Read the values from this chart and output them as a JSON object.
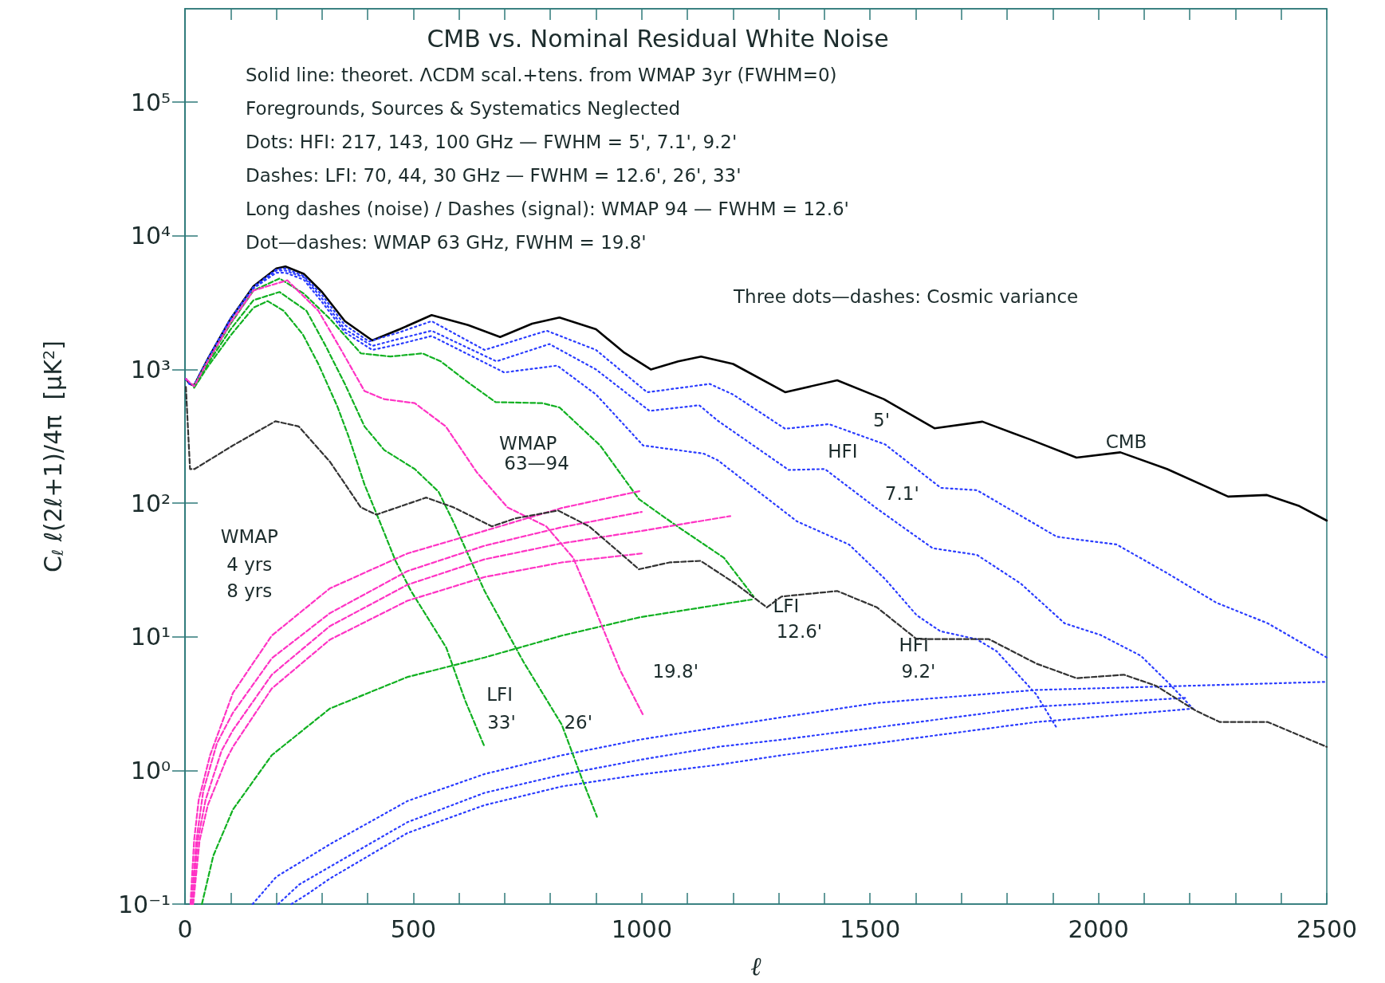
{
  "chart_data": {
    "type": "line",
    "title": "CMB vs. Nominal Residual White Noise",
    "xlabel": "ℓ",
    "ylabel": "C$_{ℓ}$ ℓ(2ℓ+1)/4π  [μK$^{2}$]",
    "xlim": [
      0,
      2500
    ],
    "xticks": [
      0,
      {
        "value": 100,
        "label": null
      },
      {
        "value": 200,
        "label": null
      },
      {
        "value": 300,
        "label": null
      },
      {
        "value": 400,
        "label": null
      },
      500,
      {
        "value": 600,
        "label": null
      },
      {
        "value": 700,
        "label": null
      },
      {
        "value": 800,
        "label": null
      },
      {
        "value": 900,
        "label": null
      },
      1000,
      {
        "value": 1100,
        "label": null
      },
      {
        "value": 1200,
        "label": null
      },
      {
        "value": 1300,
        "label": null
      },
      {
        "value": 1400,
        "label": null
      },
      1500,
      {
        "value": 1600,
        "label": null
      },
      {
        "value": 1700,
        "label": null
      },
      {
        "value": 1800,
        "label": null
      },
      {
        "value": 1900,
        "label": null
      },
      2000,
      {
        "value": 2100,
        "label": null
      },
      {
        "value": 2200,
        "label": null
      },
      {
        "value": 2300,
        "label": null
      },
      {
        "value": 2400,
        "label": null
      },
      2500
    ],
    "ylim": [
      0.1,
      500000
    ],
    "yticks": [
      {
        "value": 0.1,
        "label": "10⁻¹"
      },
      {
        "value": 1,
        "label": "10⁰"
      },
      {
        "value": 10,
        "label": "10¹"
      },
      {
        "value": 100,
        "label": "10²"
      },
      {
        "value": 1000,
        "label": "10³"
      },
      {
        "value": 10000,
        "label": "10⁴"
      },
      {
        "value": 100000,
        "label": "10⁵"
      }
    ],
    "log": "y",
    "grid": false,
    "marker": "none",
    "annotations": [
      "Solid line: theoret. ΛCDM scal.+tens. from WMAP 3yr (FWHM=0)",
      "Foregrounds, Sources & Systematics Neglected",
      "Dots: HFI: 217, 143, 100 GHz — FWHM = 5', 7.1', 9.2'",
      "Dashes: LFI: 70, 44, 30 GHz — FWHM = 12.6', 26', 33'",
      "Long dashes (noise) / Dashes (signal): WMAP 94 — FWHM = 12.6'",
      "Dot—dashes: WMAP 63 GHz, FWHM = 19.8'",
      "Three dots—dashes: Cosmic variance",
      "CMB",
      "5'",
      "HFI",
      "7.1'",
      "WMAP",
      "63—94",
      "WMAP",
      "4 yrs",
      "8 yrs",
      "LFI",
      "12.6'",
      "HFI",
      "9.2'",
      "19.8'",
      "LFI",
      "33'",
      "26'"
    ],
    "series": [
      {
        "color": "#000000",
        "line_style": "solid",
        "x": [
          2,
          10,
          20,
          50,
          100,
          150,
          200,
          220,
          260,
          300,
          350,
          410,
          470,
          540,
          620,
          690,
          760,
          820,
          900,
          960,
          1020,
          1080,
          1130,
          1200,
          1314,
          1428,
          1530,
          1641,
          1746,
          1850,
          1952,
          2048,
          2150,
          2284,
          2369,
          2440,
          2500
        ],
        "values": [
          850,
          780,
          760,
          1200,
          2400,
          4200,
          5700,
          5900,
          5200,
          3800,
          2300,
          1650,
          2000,
          2550,
          2150,
          1750,
          2200,
          2450,
          2000,
          1350,
          1000,
          1150,
          1250,
          1100,
          676,
          830,
          600,
          363,
          407,
          300,
          219,
          240,
          180,
          112,
          115,
          95,
          74
        ]
      },
      {
        "color": "#2a3cff",
        "line_style": "dotted",
        "x": [
          2,
          10,
          20,
          50,
          100,
          150,
          200,
          220,
          260,
          300,
          350,
          403,
          470,
          540,
          656,
          792,
          900,
          1012,
          1149,
          1200,
          1314,
          1410,
          1533,
          1655,
          1734,
          1909,
          2040,
          2150,
          2258,
          2371,
          2500
        ],
        "values": [
          850,
          780,
          760,
          1200,
          2400,
          4150,
          5600,
          5700,
          5000,
          3600,
          2150,
          1620,
          1900,
          2300,
          1400,
          1950,
          1400,
          675,
          780,
          650,
          360,
          390,
          275,
          130,
          125,
          56,
          49,
          30,
          18,
          12.6,
          7
        ]
      },
      {
        "color": "#2a3cff",
        "line_style": "dotted",
        "x": [
          2,
          10,
          20,
          50,
          100,
          150,
          200,
          220,
          260,
          300,
          350,
          410,
          470,
          540,
          682,
          798,
          900,
          1017,
          1126,
          1166,
          1322,
          1401,
          1515,
          1637,
          1734,
          1830,
          1926,
          2005,
          2093,
          2154,
          2207
        ],
        "values": [
          850,
          780,
          760,
          1200,
          2400,
          4100,
          5500,
          5500,
          4900,
          3400,
          2000,
          1500,
          1700,
          1950,
          1150,
          1550,
          1000,
          490,
          540,
          415,
          177,
          180,
          91,
          46,
          41,
          25,
          12.6,
          10.3,
          7.2,
          4.5,
          2.9
        ]
      },
      {
        "color": "#2a3cff",
        "line_style": "dotted",
        "x": [
          2,
          10,
          20,
          50,
          100,
          150,
          200,
          220,
          260,
          300,
          350,
          410,
          470,
          540,
          699,
          815,
          900,
          1003,
          1135,
          1166,
          1340,
          1454,
          1533,
          1602,
          1654,
          1733,
          1777,
          1864,
          1908
        ],
        "values": [
          850,
          780,
          760,
          1200,
          2400,
          4050,
          5300,
          5300,
          4700,
          3200,
          1900,
          1400,
          1550,
          1780,
          950,
          1070,
          650,
          270,
          235,
          210,
          73,
          49,
          27,
          14.5,
          11,
          9.6,
          7.8,
          3.7,
          2.1
        ]
      },
      {
        "color": "#2a3cff",
        "line_style": "dotted",
        "x": [
          148,
          200,
          317,
          487,
          656,
          826,
          996,
          1166,
          1307,
          1515,
          1864,
          2200,
          2500
        ],
        "values": [
          0.1,
          0.16,
          0.28,
          0.59,
          0.94,
          1.3,
          1.7,
          2.1,
          2.5,
          3.2,
          4,
          4.3,
          4.6
        ]
      },
      {
        "color": "#2a3cff",
        "line_style": "dotted",
        "x": [
          204,
          250,
          317,
          487,
          656,
          826,
          996,
          1166,
          1307,
          1515,
          1864,
          2196
        ],
        "values": [
          0.1,
          0.14,
          0.19,
          0.41,
          0.68,
          0.93,
          1.2,
          1.5,
          1.7,
          2.1,
          3,
          3.5
        ]
      },
      {
        "color": "#2a3cff",
        "line_style": "dotted",
        "x": [
          233,
          270,
          317,
          487,
          656,
          826,
          996,
          1166,
          1307,
          1515,
          1864,
          2207
        ],
        "values": [
          0.1,
          0.12,
          0.155,
          0.34,
          0.55,
          0.76,
          0.93,
          1.1,
          1.3,
          1.6,
          2.3,
          2.9
        ]
      },
      {
        "color": "#10b020",
        "line_style": "dashed",
        "x": [
          20,
          50,
          100,
          150,
          207,
          260,
          317,
          385,
          450,
          520,
          560,
          620,
          680,
          782,
          820,
          909,
          994,
          1078,
          1180,
          1245
        ],
        "values": [
          750,
          1150,
          2200,
          3900,
          4800,
          3700,
          2400,
          1320,
          1250,
          1320,
          1150,
          800,
          570,
          560,
          520,
          270,
          107,
          67,
          39,
          20
        ]
      },
      {
        "color": "#10b020",
        "line_style": "dashed",
        "x": [
          20,
          50,
          100,
          150,
          207,
          266,
          308,
          350,
          393,
          436,
          503,
          555,
          588,
          656,
          741,
          825,
          869,
          902
        ],
        "values": [
          740,
          1100,
          2000,
          3300,
          3800,
          2750,
          1500,
          780,
          375,
          250,
          180,
          122,
          72,
          22,
          6.5,
          2.2,
          0.87,
          0.45
        ]
      },
      {
        "color": "#10b020",
        "line_style": "dashed",
        "x": [
          20,
          50,
          100,
          150,
          181,
          216,
          258,
          292,
          334,
          359,
          393,
          427,
          461,
          495,
          572,
          614,
          656
        ],
        "values": [
          730,
          1050,
          1800,
          2900,
          3250,
          2750,
          1830,
          1100,
          525,
          310,
          138,
          72,
          37,
          22,
          8.3,
          3.3,
          1.5
        ]
      },
      {
        "color": "#10b020",
        "line_style": "dashed",
        "x": [
          37,
          62,
          105,
          190,
          317,
          487,
          656,
          825,
          996,
          1241
        ],
        "values": [
          0.1,
          0.23,
          0.51,
          1.3,
          2.9,
          5,
          7,
          10.2,
          14,
          19
        ]
      },
      {
        "color": "#ff33c4",
        "line_style": "dashed",
        "x": [
          2,
          20,
          50,
          100,
          150,
          224,
          292,
          342,
          393,
          436,
          503,
          571,
          639,
          706,
          791,
          850,
          892,
          911,
          953,
          1003
        ],
        "values": [
          850,
          750,
          1150,
          2250,
          3900,
          4650,
          2750,
          1400,
          690,
          600,
          560,
          375,
          170,
          93,
          67,
          39,
          18,
          12.5,
          5.6,
          2.6
        ]
      },
      {
        "color": "#ff33c4",
        "line_style": "dashed",
        "x": [
          12,
          20,
          30,
          55,
          105,
          190,
          317,
          487,
          656,
          825,
          1000
        ],
        "values": [
          0.1,
          0.3,
          0.6,
          1.3,
          3.8,
          10.2,
          23,
          42,
          62,
          92,
          124
        ]
      },
      {
        "color": "#ff33c4",
        "line_style": "dashed",
        "x": [
          14,
          25,
          40,
          70,
          105,
          190,
          317,
          487,
          656,
          825,
          1000
        ],
        "values": [
          0.1,
          0.3,
          0.7,
          1.6,
          2.7,
          6.9,
          15,
          31,
          48,
          66,
          86
        ]
      },
      {
        "color": "#ff33c4",
        "line_style": "dashed",
        "x": [
          16,
          28,
          45,
          80,
          105,
          190,
          317,
          487,
          656,
          825,
          1000,
          1194
        ],
        "values": [
          0.1,
          0.3,
          0.6,
          1.4,
          2,
          5.2,
          12,
          24.5,
          38,
          50,
          62,
          80
        ]
      },
      {
        "color": "#ff33c4",
        "line_style": "dashed",
        "x": [
          18,
          32,
          50,
          90,
          105,
          190,
          317,
          487,
          656,
          825,
          1000
        ],
        "values": [
          0.1,
          0.3,
          0.55,
          1.2,
          1.5,
          4.1,
          9.5,
          18.6,
          28,
          36,
          42
        ]
      },
      {
        "color": "#333333",
        "line_style": "dashed",
        "x": [
          2,
          11,
          21,
          105,
          198,
          249,
          317,
          385,
          419,
          528,
          588,
          672,
          724,
          817,
          885,
          994,
          1061,
          1129,
          1205,
          1274,
          1306,
          1428,
          1515,
          1602,
          1760,
          1864,
          1952,
          2056,
          2126,
          2213,
          2266,
          2371,
          2500
        ],
        "values": [
          740,
          180,
          180,
          270,
          410,
          375,
          205,
          93,
          82,
          110,
          93,
          67,
          77,
          88,
          67,
          32,
          36,
          37,
          25,
          16.6,
          20,
          22,
          16.6,
          9.6,
          9.6,
          6.3,
          4.9,
          5.2,
          4.3,
          2.8,
          2.3,
          2.3,
          1.5
        ]
      }
    ]
  }
}
